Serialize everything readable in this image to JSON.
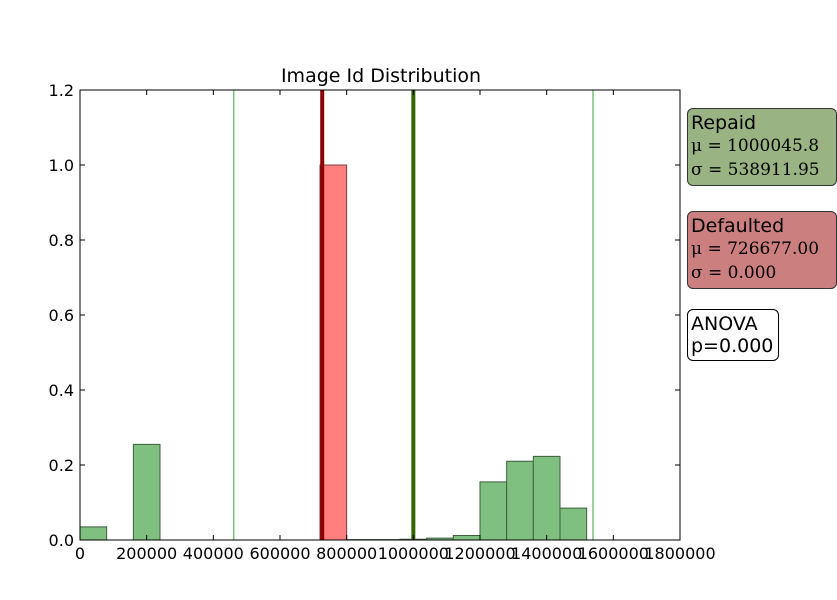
{
  "chart_data": {
    "type": "bar",
    "title": "Image Id Distribution",
    "xlim": [
      0,
      1800000
    ],
    "ylim": [
      0,
      1.2
    ],
    "xticks": [
      "0",
      "200000",
      "400000",
      "600000",
      "800000",
      "1000000",
      "1200000",
      "1400000",
      "1600000",
      "1800000"
    ],
    "yticks": [
      "0.0",
      "0.2",
      "0.4",
      "0.6",
      "0.8",
      "1.0",
      "1.2"
    ],
    "series": [
      {
        "name": "Repaid",
        "color": "#7fbf7f",
        "bins": [
          {
            "x0": 0,
            "x1": 80000,
            "y": 0.035
          },
          {
            "x0": 160000,
            "x1": 240000,
            "y": 0.255
          },
          {
            "x0": 800000,
            "x1": 880000,
            "y": 0.001
          },
          {
            "x0": 880000,
            "x1": 960000,
            "y": 0.001
          },
          {
            "x0": 960000,
            "x1": 1040000,
            "y": 0.002
          },
          {
            "x0": 1040000,
            "x1": 1120000,
            "y": 0.005
          },
          {
            "x0": 1120000,
            "x1": 1200000,
            "y": 0.012
          },
          {
            "x0": 1200000,
            "x1": 1280000,
            "y": 0.155
          },
          {
            "x0": 1280000,
            "x1": 1360000,
            "y": 0.21
          },
          {
            "x0": 1360000,
            "x1": 1440000,
            "y": 0.223
          },
          {
            "x0": 1440000,
            "x1": 1520000,
            "y": 0.085
          }
        ],
        "mean_line": 1000045.8,
        "sd_lines": [
          461134,
          1538958
        ]
      },
      {
        "name": "Defaulted",
        "color": "#ff7f7f",
        "bins": [
          {
            "x0": 720000,
            "x1": 800000,
            "y": 1.0
          }
        ],
        "mean_line": 726677.0
      }
    ],
    "annotations": {
      "repaid": {
        "label": "Repaid",
        "mu": "μ = 1000045.8",
        "sigma": "σ = 538911.95"
      },
      "defaulted": {
        "label": "Defaulted",
        "mu": "μ = 726677.00",
        "sigma": "σ = 0.000"
      },
      "anova": {
        "line1": "ANOVA",
        "line2": "p=0.000"
      }
    }
  }
}
